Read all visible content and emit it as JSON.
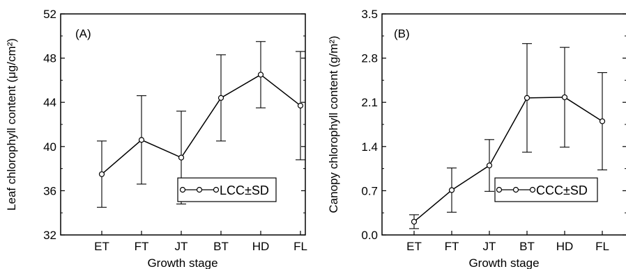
{
  "chart_data": [
    {
      "type": "line",
      "panel_label": "(A)",
      "categories": [
        "ET",
        "FT",
        "JT",
        "BT",
        "HD",
        "FL"
      ],
      "series": [
        {
          "name": "LCC±SD",
          "values": [
            37.5,
            40.6,
            39.0,
            44.4,
            46.5,
            43.7
          ],
          "sd": [
            3.0,
            4.0,
            4.2,
            3.9,
            3.0,
            4.9
          ]
        }
      ],
      "xlabel": "Growth stage",
      "ylabel": "Leaf chlorophyll content (μg/cm²)",
      "ylim": [
        32,
        52
      ],
      "yticks": [
        "32",
        "36",
        "40",
        "44",
        "48",
        "52"
      ],
      "grid": false,
      "legend_position": "lower-right"
    },
    {
      "type": "line",
      "panel_label": "(B)",
      "categories": [
        "ET",
        "FT",
        "JT",
        "BT",
        "HD",
        "FL"
      ],
      "series": [
        {
          "name": "CCC±SD",
          "values": [
            0.21,
            0.71,
            1.1,
            2.17,
            2.18,
            1.8
          ],
          "sd": [
            0.11,
            0.35,
            0.41,
            0.86,
            0.79,
            0.77
          ]
        }
      ],
      "xlabel": "Growth stage",
      "ylabel": "Canopy chlorophyll content (g/m²)",
      "ylim": [
        0,
        3.5
      ],
      "yticks": [
        "0.0",
        "0.7",
        "1.4",
        "2.1",
        "2.8",
        "3.5"
      ],
      "grid": false,
      "legend_position": "lower-right"
    }
  ]
}
